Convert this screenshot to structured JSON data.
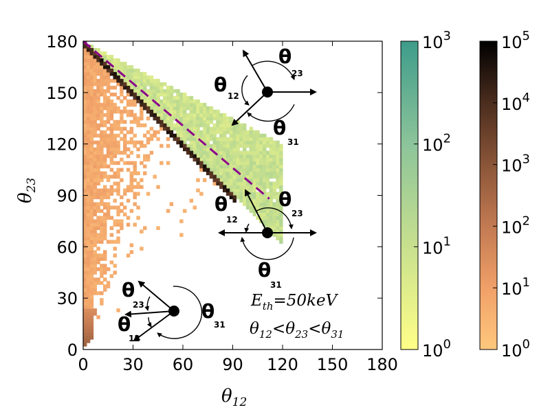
{
  "chart_data": {
    "type": "heatmap",
    "title": "",
    "xlabel": {
      "symbol": "θ",
      "sub": "12"
    },
    "ylabel": {
      "symbol": "θ",
      "sub": "23"
    },
    "xlim": [
      0,
      180
    ],
    "ylim": [
      0,
      180
    ],
    "x_ticks": [
      "0",
      "30",
      "60",
      "90",
      "120",
      "150",
      "180"
    ],
    "y_ticks": [
      "0",
      "30",
      "60",
      "90",
      "120",
      "150",
      "180"
    ],
    "bin_size_deg": 2,
    "series": [
      {
        "name": "main histogram (copper colormap)",
        "region": "θ12 < θ23 < θ31, below θ12 + θ23 = 180",
        "diagonal_peak": {
          "from": [
            0,
            180
          ],
          "to": [
            90,
            90
          ],
          "approx_count": 10000
        },
        "bulk_counts_range": [
          1,
          100
        ]
      },
      {
        "name": "planar-excluded band (summer colormap)",
        "region": "above θ12 + θ23 = 180, θ23 < 180 - θ12/2",
        "counts_range": [
          1,
          1000
        ]
      }
    ],
    "boundary_line": {
      "style": "dashed",
      "color": "#8b008b",
      "from": [
        0,
        180
      ],
      "to": [
        112,
        88
      ]
    },
    "colorbars": [
      {
        "name": "green colorbar",
        "ticks": [
          {
            "base": "10",
            "exp": "0"
          },
          {
            "base": "10",
            "exp": "1"
          },
          {
            "base": "10",
            "exp": "2"
          },
          {
            "base": "10",
            "exp": "3"
          }
        ],
        "colors": [
          "#ffff88",
          "#c8e08e",
          "#8cc49a",
          "#3e9c8a"
        ]
      },
      {
        "name": "copper colorbar",
        "ticks": [
          {
            "base": "10",
            "exp": "0"
          },
          {
            "base": "10",
            "exp": "1"
          },
          {
            "base": "10",
            "exp": "2"
          },
          {
            "base": "10",
            "exp": "3"
          },
          {
            "base": "10",
            "exp": "4"
          },
          {
            "base": "10",
            "exp": "5"
          }
        ],
        "colors": [
          "#ffc87e",
          "#f0a068",
          "#c27a52",
          "#8a5538",
          "#4b2d1e",
          "#000000"
        ]
      }
    ],
    "annotations": {
      "energy_threshold": {
        "symbol": "E",
        "sub": "th",
        "rest": "=50keV"
      },
      "ordering": [
        {
          "symbol": "θ",
          "sub": "12"
        },
        {
          "op": "<"
        },
        {
          "symbol": "θ",
          "sub": "23"
        },
        {
          "op": "<"
        },
        {
          "symbol": "θ",
          "sub": "31"
        }
      ],
      "angle_diagrams": [
        {
          "name": "top diagram",
          "labels": [
            {
              "t": "θ",
              "s": "12"
            },
            {
              "t": "θ",
              "s": "23"
            },
            {
              "t": "θ",
              "s": "31"
            }
          ]
        },
        {
          "name": "middle diagram",
          "labels": [
            {
              "t": "θ",
              "s": "12"
            },
            {
              "t": "θ",
              "s": "23"
            },
            {
              "t": "θ",
              "s": "31"
            }
          ]
        },
        {
          "name": "bottom diagram",
          "labels": [
            {
              "t": "θ",
              "s": "23"
            },
            {
              "t": "θ",
              "s": "12"
            },
            {
              "t": "θ",
              "s": "31"
            }
          ]
        }
      ]
    }
  }
}
